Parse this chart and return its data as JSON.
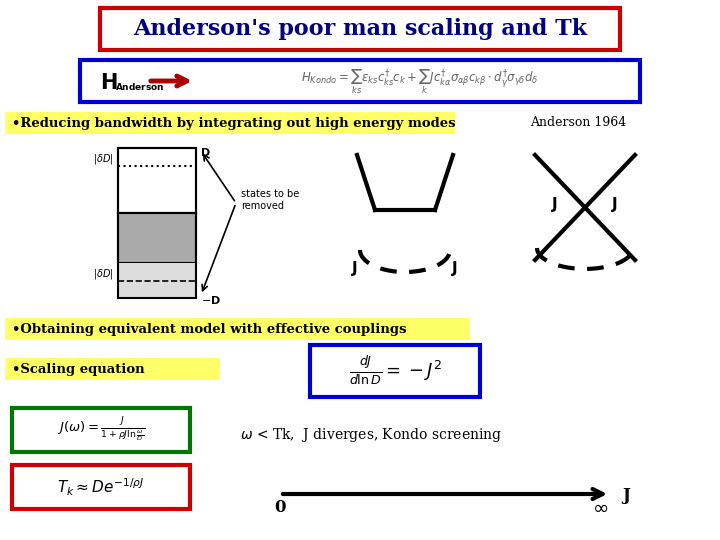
{
  "title": "Anderson's poor man scaling and Tk",
  "title_color": "#000080",
  "title_box_color": "#cc0000",
  "bg_color": "#ffffff",
  "bullet1": "•Reducing bandwidth by integrating out high energy modes",
  "anderson1964": "Anderson 1964",
  "bullet2": "•Obtaining equivalent model with effective couplings",
  "bullet3": "•Scaling equation",
  "yellow_bg": "#ffff66",
  "blue_box": "#0000cc",
  "green_box": "#007700",
  "red_box": "#cc0000"
}
